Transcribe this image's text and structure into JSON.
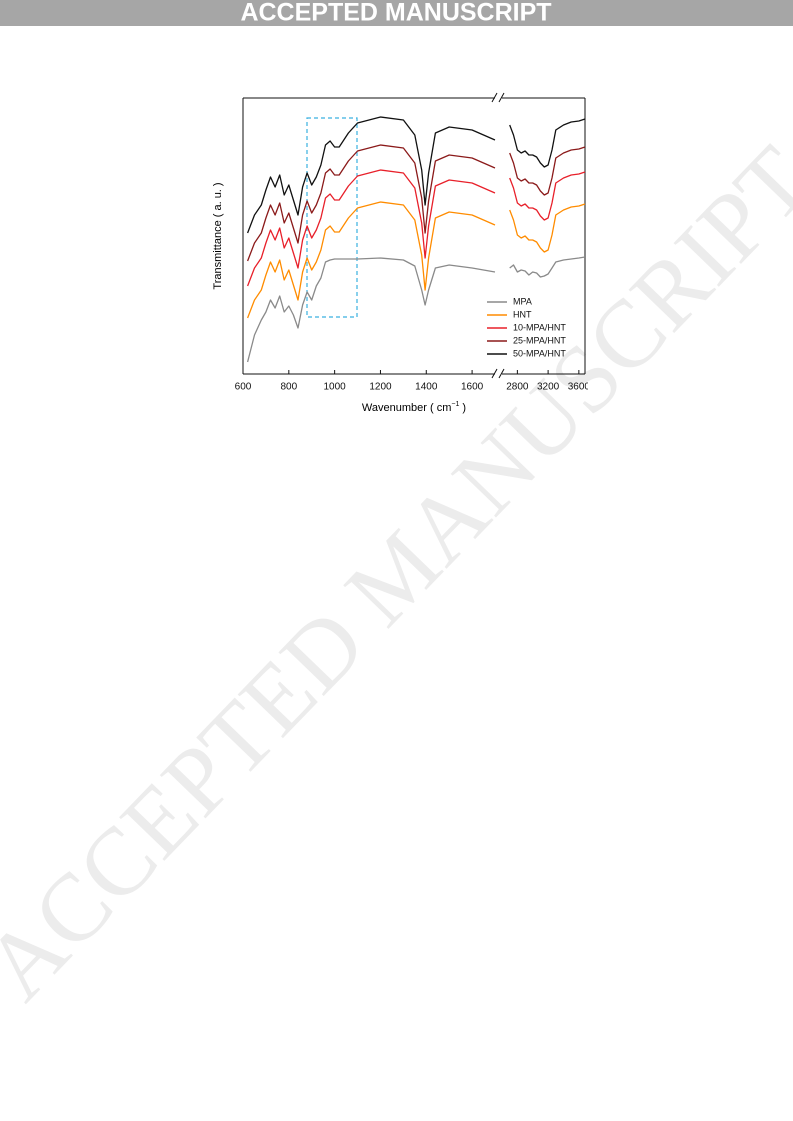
{
  "header": {
    "banner": "ACCEPTED MANUSCRIPT"
  },
  "watermark": "ACCEPTED MANUSCRIPT",
  "chart_data": {
    "type": "line",
    "y_label": "Transmittance ( a. u. )",
    "x_label": {
      "text": "Wavenumber ( cm",
      "superscript": "−1",
      "suffix": " )"
    },
    "x": [
      620,
      650,
      680,
      700,
      720,
      740,
      760,
      780,
      800,
      820,
      840,
      860,
      880,
      900,
      920,
      940,
      960,
      980,
      1000,
      1020,
      1040,
      1060,
      1100,
      1200,
      1300,
      1350,
      1380,
      1395,
      1410,
      1440,
      1500,
      1600,
      1700,
      2700,
      2750,
      2800,
      2850,
      2900,
      2950,
      3000,
      3050,
      3100,
      3150,
      3200,
      3250,
      3300,
      3400,
      3500,
      3600,
      3680
    ],
    "xlim": [
      600,
      1700
    ],
    "x2lim": [
      2600,
      3680
    ],
    "xticks": [
      600,
      800,
      1000,
      1200,
      1400,
      1600
    ],
    "x2ticks": [
      2800,
      3200,
      3600
    ],
    "ylim": [
      0,
      276
    ],
    "series": [
      {
        "name": "MPA",
        "color": "#8a8a8a",
        "values": [
          12,
          39,
          54,
          62,
          74,
          66,
          78,
          62,
          68,
          59,
          46,
          69,
          82,
          74,
          88,
          96,
          112,
          114,
          115,
          115,
          115,
          115,
          115,
          116,
          114,
          108,
          84,
          69,
          84,
          106,
          109,
          106,
          102,
          106,
          109,
          102,
          104,
          103,
          99,
          102,
          101,
          97,
          98,
          100,
          106,
          112,
          114,
          115,
          116,
          117
        ]
      },
      {
        "name": "HNT",
        "color": "#ff8c00",
        "values": [
          56,
          74,
          84,
          99,
          112,
          102,
          114,
          94,
          104,
          89,
          74,
          102,
          116,
          104,
          112,
          124,
          144,
          148,
          142,
          142,
          149,
          156,
          166,
          172,
          169,
          154,
          119,
          84,
          116,
          156,
          162,
          159,
          149,
          164,
          154,
          139,
          136,
          138,
          134,
          134,
          132,
          126,
          122,
          124,
          139,
          159,
          164,
          167,
          168,
          170
        ]
      },
      {
        "name": "10-MPA/HNT",
        "color": "#e8202a",
        "values": [
          88,
          106,
          116,
          131,
          144,
          134,
          146,
          126,
          136,
          121,
          106,
          134,
          148,
          136,
          144,
          156,
          176,
          180,
          174,
          174,
          181,
          188,
          198,
          204,
          201,
          186,
          151,
          116,
          148,
          188,
          194,
          191,
          181,
          196,
          186,
          171,
          168,
          170,
          166,
          166,
          164,
          158,
          154,
          156,
          171,
          191,
          196,
          199,
          200,
          202
        ]
      },
      {
        "name": "25-MPA/HNT",
        "color": "#8b1a1a",
        "values": [
          113,
          131,
          141,
          156,
          169,
          159,
          171,
          151,
          161,
          146,
          131,
          159,
          173,
          161,
          169,
          181,
          201,
          205,
          199,
          199,
          206,
          213,
          223,
          229,
          226,
          211,
          176,
          141,
          173,
          213,
          219,
          216,
          206,
          221,
          211,
          196,
          193,
          195,
          191,
          191,
          189,
          183,
          179,
          181,
          196,
          216,
          221,
          224,
          225,
          227
        ]
      },
      {
        "name": "50-MPA/HNT",
        "color": "#111111",
        "values": [
          141,
          159,
          169,
          184,
          197,
          187,
          199,
          179,
          189,
          174,
          159,
          187,
          201,
          189,
          197,
          209,
          229,
          233,
          227,
          227,
          234,
          241,
          251,
          257,
          254,
          239,
          204,
          169,
          201,
          241,
          247,
          244,
          234,
          249,
          239,
          224,
          221,
          223,
          219,
          219,
          217,
          211,
          207,
          209,
          224,
          244,
          249,
          252,
          253,
          255
        ]
      }
    ],
    "legend": "lower right"
  }
}
